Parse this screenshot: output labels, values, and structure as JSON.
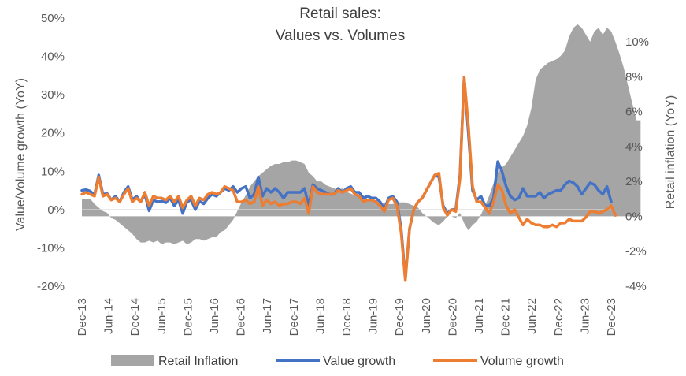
{
  "chart_data": {
    "type": "line",
    "title_lines": [
      "Retail sales:",
      "Values vs. Volumes"
    ],
    "ylabel": "Value/Volume  growth (YoY)",
    "y2label": "Retail inflation (YoY)",
    "ylim": [
      -0.2,
      0.5
    ],
    "y_ticks": [
      0.5,
      0.4,
      0.3,
      0.2,
      0.1,
      0.0,
      -0.1,
      -0.2
    ],
    "y_tick_labels": [
      "50%",
      "40%",
      "30%",
      "20%",
      "10%",
      "0%",
      "-10%",
      "-20%"
    ],
    "y2lim": [
      -4,
      11.7
    ],
    "y2_ticks": [
      10,
      8,
      6,
      4,
      2,
      0,
      -2,
      -4
    ],
    "y2_tick_labels": [
      "10%",
      "8%",
      "6%",
      "4%",
      "2%",
      "0%",
      "-2%",
      "-4%"
    ],
    "x_tick_labels": [
      "Dec-13",
      "Jun-14",
      "Dec-14",
      "Jun-15",
      "Dec-15",
      "Jun-16",
      "Dec-16",
      "Jun-17",
      "Dec-17",
      "Jun-18",
      "Dec-18",
      "Jun-19",
      "Dec-19",
      "Jun-20",
      "Dec-20",
      "Jun-21",
      "Dec-21",
      "Jun-22",
      "Dec-22",
      "Jun-23",
      "Dec-23"
    ],
    "x_start": "Dec-13",
    "x_end": "Dec-23",
    "legend_position": "bottom",
    "series": [
      {
        "name": "Retail Inflation",
        "type": "area",
        "axis": "right",
        "color": "#a5a5a5",
        "values": [
          1.0,
          1.0,
          1.0,
          0.7,
          0.5,
          0.3,
          0.2,
          -0.1,
          -0.2,
          -0.4,
          -0.6,
          -0.8,
          -1.0,
          -1.3,
          -1.5,
          -1.5,
          -1.4,
          -1.5,
          -1.4,
          -1.6,
          -1.5,
          -1.5,
          -1.6,
          -1.5,
          -1.4,
          -1.6,
          -1.5,
          -1.3,
          -1.3,
          -1.4,
          -1.3,
          -1.2,
          -1.2,
          -0.9,
          -0.8,
          -0.5,
          -0.2,
          0.3,
          0.8,
          1.2,
          1.7,
          2.0,
          2.3,
          2.5,
          2.7,
          2.9,
          3.0,
          3.0,
          3.1,
          3.1,
          3.2,
          3.2,
          3.1,
          3.0,
          2.5,
          2.3,
          2.0,
          2.0,
          1.8,
          1.7,
          1.6,
          1.5,
          1.6,
          1.4,
          1.3,
          1.2,
          1.2,
          1.2,
          1.0,
          0.9,
          0.8,
          0.7,
          0.8,
          0.7,
          0.7,
          0.8,
          0.8,
          0.8,
          0.7,
          0.6,
          0.5,
          0.2,
          0.0,
          -0.2,
          -0.4,
          -0.5,
          -0.3,
          0.0,
          0.0,
          -0.1,
          0.2,
          -0.4,
          -0.8,
          -0.5,
          -0.3,
          0.1,
          0.6,
          1.2,
          1.9,
          2.5,
          2.8,
          3.0,
          3.4,
          3.8,
          4.2,
          4.6,
          5.2,
          6.2,
          7.8,
          8.4,
          8.6,
          8.8,
          8.9,
          9.0,
          9.2,
          9.5,
          10.3,
          10.8,
          11.0,
          10.8,
          10.4,
          10.0,
          10.6,
          10.8,
          10.4,
          10.8,
          10.6,
          10.0,
          9.3,
          8.5,
          7.5,
          6.5,
          5.5,
          5.5
        ]
      },
      {
        "name": "Value growth",
        "type": "line",
        "axis": "left",
        "color": "#4472c4",
        "values": [
          0.05,
          0.052,
          0.048,
          0.038,
          0.09,
          0.04,
          0.042,
          0.025,
          0.035,
          0.02,
          0.045,
          0.06,
          0.025,
          0.035,
          0.02,
          0.04,
          -0.003,
          0.025,
          0.02,
          0.022,
          0.018,
          0.03,
          0.01,
          0.025,
          -0.01,
          0.02,
          0.025,
          0.0,
          0.022,
          0.015,
          0.03,
          0.04,
          0.035,
          0.045,
          0.055,
          0.05,
          0.06,
          0.045,
          0.055,
          0.06,
          0.03,
          0.04,
          0.085,
          0.035,
          0.055,
          0.045,
          0.055,
          0.045,
          0.03,
          0.045,
          0.045,
          0.045,
          0.045,
          0.055,
          0.01,
          0.065,
          0.055,
          0.05,
          0.045,
          0.04,
          0.04,
          0.055,
          0.045,
          0.055,
          0.06,
          0.045,
          0.045,
          0.03,
          0.035,
          0.03,
          0.03,
          0.02,
          0.0,
          0.03,
          0.035,
          0.02,
          -0.05,
          -0.18,
          -0.05,
          0.0,
          0.02,
          0.03,
          0.05,
          0.07,
          0.09,
          0.085,
          0.01,
          -0.01,
          0.0,
          0.0,
          0.09,
          0.345,
          0.2,
          0.05,
          0.025,
          0.035,
          0.01,
          0.01,
          0.03,
          0.125,
          0.1,
          0.06,
          0.035,
          0.025,
          0.03,
          0.055,
          0.035,
          0.035,
          0.035,
          0.045,
          0.03,
          0.04,
          0.045,
          0.05,
          0.05,
          0.065,
          0.075,
          0.07,
          0.06,
          0.04,
          0.055,
          0.07,
          0.065,
          0.05,
          0.04,
          0.06,
          0.02
        ]
      },
      {
        "name": "Volume growth",
        "type": "line",
        "axis": "left",
        "color": "#ed7d31",
        "values": [
          0.04,
          0.045,
          0.04,
          0.035,
          0.085,
          0.035,
          0.04,
          0.025,
          0.03,
          0.02,
          0.04,
          0.055,
          0.02,
          0.03,
          0.02,
          0.045,
          0.01,
          0.035,
          0.03,
          0.03,
          0.025,
          0.035,
          0.02,
          0.035,
          0.005,
          0.025,
          0.035,
          0.01,
          0.03,
          0.025,
          0.04,
          0.045,
          0.04,
          0.045,
          0.06,
          0.055,
          0.05,
          0.02,
          0.02,
          0.025,
          0.015,
          0.02,
          0.06,
          0.01,
          0.025,
          0.015,
          0.02,
          0.01,
          0.015,
          0.015,
          0.02,
          0.02,
          0.015,
          0.03,
          -0.01,
          0.06,
          0.045,
          0.04,
          0.04,
          0.04,
          0.04,
          0.05,
          0.045,
          0.05,
          0.055,
          0.04,
          0.035,
          0.02,
          0.025,
          0.025,
          0.02,
          0.01,
          -0.005,
          0.025,
          0.03,
          0.01,
          -0.06,
          -0.185,
          -0.05,
          0.0,
          0.02,
          0.03,
          0.05,
          0.07,
          0.09,
          0.095,
          0.005,
          -0.015,
          0.0,
          -0.005,
          0.08,
          0.345,
          0.22,
          0.06,
          0.02,
          0.02,
          0.005,
          -0.01,
          0.02,
          0.065,
          0.05,
          0.01,
          -0.01,
          0.0,
          -0.02,
          -0.04,
          -0.025,
          -0.035,
          -0.04,
          -0.04,
          -0.045,
          -0.045,
          -0.04,
          -0.045,
          -0.035,
          -0.035,
          -0.025,
          -0.03,
          -0.03,
          -0.03,
          -0.02,
          -0.005,
          -0.005,
          -0.01,
          -0.005,
          0.0,
          0.01,
          -0.015
        ]
      }
    ]
  }
}
